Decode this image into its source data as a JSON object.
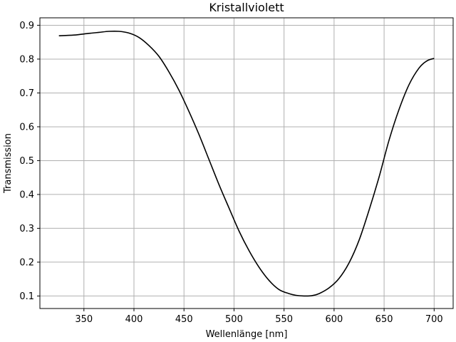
{
  "chart_data": {
    "type": "line",
    "title": "Kristallviolett",
    "xlabel": "Wellenlänge [nm]",
    "ylabel": "Transmission",
    "xlim": [
      306,
      719
    ],
    "ylim": [
      0.063,
      0.922
    ],
    "xticks": [
      350,
      400,
      450,
      500,
      550,
      600,
      650,
      700
    ],
    "yticks": [
      0.1,
      0.2,
      0.3,
      0.4,
      0.5,
      0.6,
      0.7,
      0.8,
      0.9
    ],
    "xtick_labels": [
      "350",
      "400",
      "450",
      "500",
      "550",
      "600",
      "650",
      "700"
    ],
    "ytick_labels": [
      "0.1",
      "0.2",
      "0.3",
      "0.4",
      "0.5",
      "0.6",
      "0.7",
      "0.8",
      "0.9"
    ],
    "grid": true,
    "series": [
      {
        "color": "#000000",
        "x": [
          325,
          340,
          355,
          365,
          375,
          385,
          395,
          405,
          415,
          425,
          435,
          445,
          455,
          465,
          475,
          485,
          495,
          505,
          515,
          525,
          535,
          545,
          555,
          562,
          570,
          578,
          585,
          595,
          605,
          615,
          625,
          635,
          645,
          655,
          665,
          675,
          685,
          693,
          700
        ],
        "y": [
          0.869,
          0.871,
          0.876,
          0.879,
          0.882,
          0.882,
          0.877,
          0.864,
          0.84,
          0.808,
          0.762,
          0.708,
          0.645,
          0.577,
          0.503,
          0.429,
          0.36,
          0.292,
          0.234,
          0.185,
          0.146,
          0.119,
          0.107,
          0.102,
          0.1,
          0.101,
          0.107,
          0.124,
          0.152,
          0.198,
          0.265,
          0.354,
          0.452,
          0.561,
          0.652,
          0.725,
          0.774,
          0.795,
          0.802
        ]
      }
    ]
  }
}
